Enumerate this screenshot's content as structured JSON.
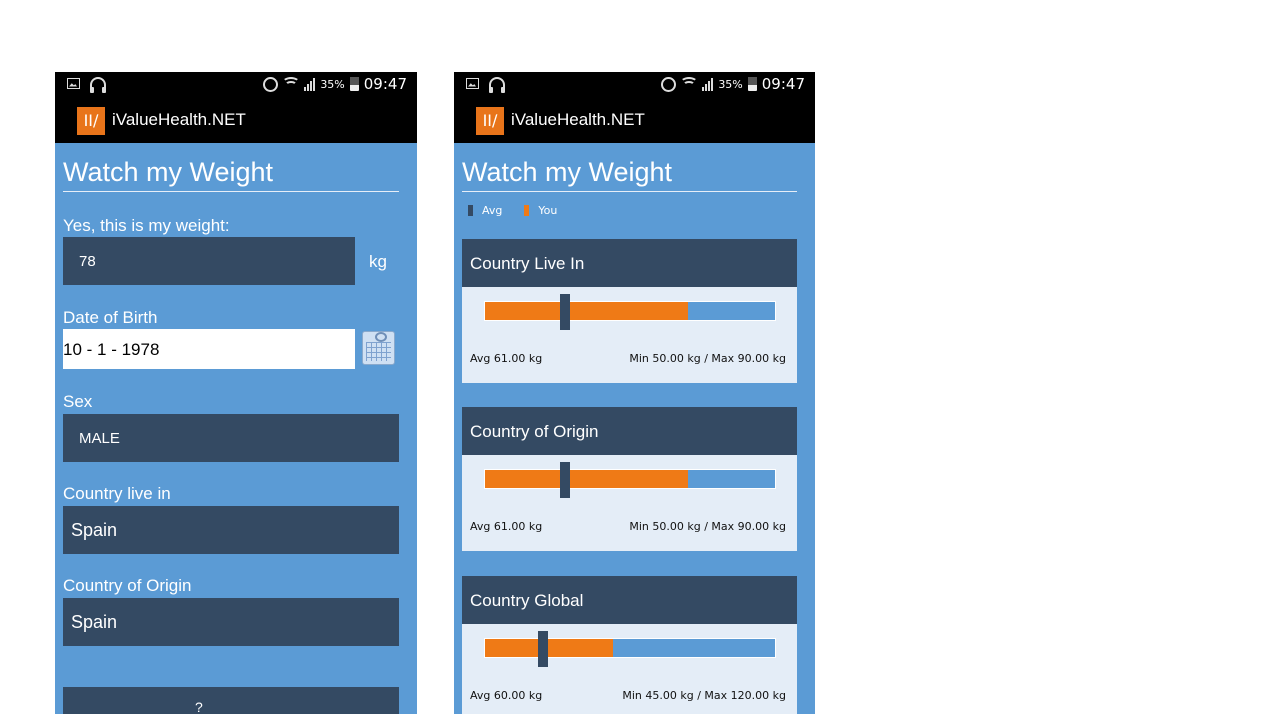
{
  "status_bar": {
    "battery": "35%",
    "time": "09:47"
  },
  "app": {
    "title": "iValueHealth.NET",
    "logo_text": "ІІ∕"
  },
  "page_title": "Watch my Weight",
  "form": {
    "weight_label": "Yes, this is my weight:",
    "weight_value": "78",
    "weight_unit": "kg",
    "dob_label": "Date of Birth",
    "dob_value": "10 - 1 - 1978",
    "sex_label": "Sex",
    "sex_value": "MALE",
    "country_live_label": "Country live in",
    "country_live_value": "Spain",
    "country_origin_label": "Country of Origin",
    "country_origin_value": "Spain",
    "bottom_partial_text": "?"
  },
  "legend": {
    "avg": "Avg",
    "you": "You"
  },
  "comparisons": [
    {
      "title": "Country Live In",
      "avg_text": "Avg 61.00 kg",
      "range_text": "Min 50.00 kg  / Max 90.00 kg",
      "min": 50,
      "max": 90,
      "avg": 61,
      "you": 78
    },
    {
      "title": "Country of Origin",
      "avg_text": "Avg 61.00 kg",
      "range_text": "Min 50.00 kg  / Max 90.00 kg",
      "min": 50,
      "max": 90,
      "avg": 61,
      "you": 78
    },
    {
      "title": "Country Global",
      "avg_text": "Avg 60.00 kg",
      "range_text": "Min 45.00 kg  / Max 120.00 kg",
      "min": 45,
      "max": 120,
      "avg": 60,
      "you": 78
    }
  ],
  "colors": {
    "background": "#5b9bd5",
    "panel": "#344a63",
    "accent": "#ef7a16",
    "card_body": "#e4edf7"
  }
}
